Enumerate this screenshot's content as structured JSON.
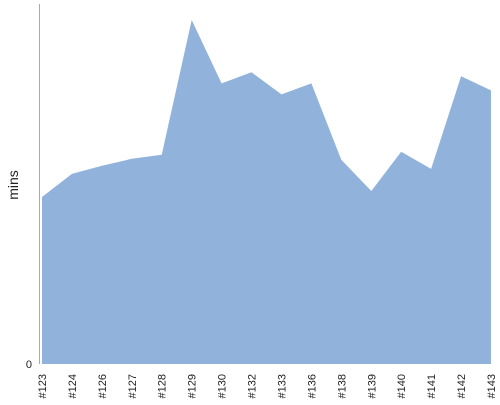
{
  "chart_data": {
    "type": "area",
    "categories": [
      "#123",
      "#124",
      "#126",
      "#127",
      "#128",
      "#129",
      "#130",
      "#132",
      "#133",
      "#136",
      "#138",
      "#139",
      "#140",
      "#141",
      "#142",
      "#143"
    ],
    "series": [
      {
        "values": [
          166,
          189,
          197,
          204,
          208,
          342,
          279,
          290,
          268,
          279,
          203,
          172,
          211,
          194,
          286,
          272
        ]
      }
    ],
    "xlabel": "",
    "ylabel": "mins",
    "ylim": [
      0,
      342
    ],
    "y_tick_labels": [
      "0"
    ],
    "grid": false,
    "legend": "none",
    "colors": {
      "fill": "#91b3db",
      "axis": "#aaaaaa"
    }
  }
}
